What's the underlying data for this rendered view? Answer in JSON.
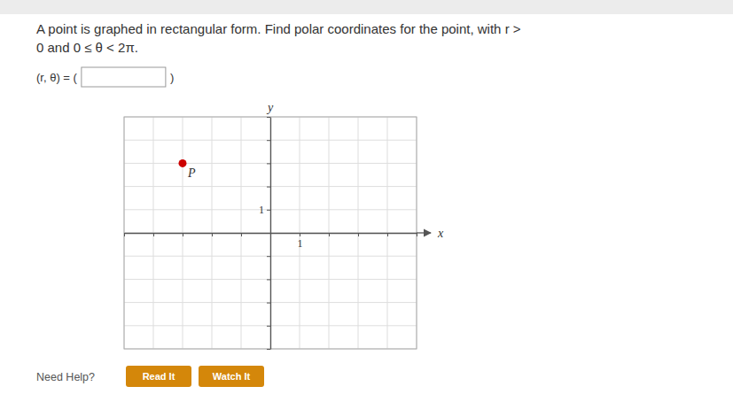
{
  "chart_data": {
    "type": "scatter",
    "title": [
      "A point is graphed in rectangular form. Find polar coordinates for the point, with r >",
      "0 and 0 ≤ θ < 2π."
    ],
    "annotations": [
      "(r, θ) = (",
      ")",
      "P",
      "Need Help?",
      "Read It",
      "Watch It"
    ],
    "xlabel": "x",
    "ylabel": "y",
    "x": [
      -3
    ],
    "values": [
      3
    ],
    "color": "#cc0000",
    "marker": "circle",
    "xlim": [
      -5,
      5
    ],
    "ylim": [
      -5,
      5
    ],
    "xticks": [
      {
        "value": -5,
        "label": null
      },
      {
        "value": -4,
        "label": null
      },
      {
        "value": -3,
        "label": null
      },
      {
        "value": -2,
        "label": null
      },
      {
        "value": -1,
        "label": null
      },
      {
        "value": 0,
        "label": null
      },
      {
        "value": 1,
        "label": "1"
      },
      {
        "value": 2,
        "label": null
      },
      {
        "value": 3,
        "label": null
      },
      {
        "value": 4,
        "label": null
      },
      {
        "value": 5,
        "label": null
      }
    ],
    "yticks": [
      {
        "value": -5,
        "label": null
      },
      {
        "value": -4,
        "label": null
      },
      {
        "value": -3,
        "label": null
      },
      {
        "value": -2,
        "label": null
      },
      {
        "value": -1,
        "label": null
      },
      {
        "value": 0,
        "label": null
      },
      {
        "value": 1,
        "label": "1"
      },
      {
        "value": 2,
        "label": null
      },
      {
        "value": 3,
        "label": null
      },
      {
        "value": 4,
        "label": null
      },
      {
        "value": 5,
        "label": null
      }
    ],
    "grid": true
  }
}
